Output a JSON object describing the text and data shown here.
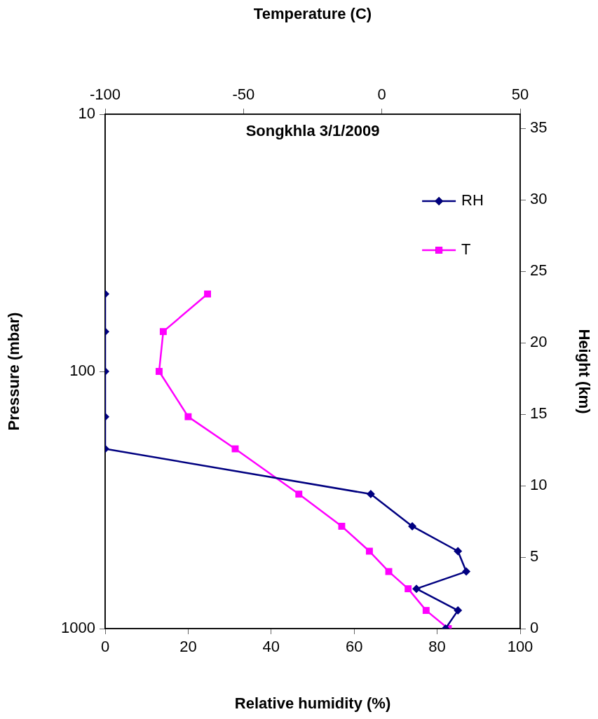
{
  "chart_data": {
    "type": "line",
    "title": "Songkhla 3/1/2009",
    "xlabel": "Relative humidity (%)",
    "x2label": "Temperature (C)",
    "ylabel": "Pressure (mbar)",
    "y2label": "Height (km)",
    "xlim": [
      0,
      100
    ],
    "xticks": [
      0,
      20,
      40,
      60,
      80,
      100
    ],
    "x2lim": [
      -100,
      50
    ],
    "x2ticks": [
      -100,
      -50,
      0,
      50
    ],
    "ylim": [
      1000,
      10
    ],
    "yticks": [
      10,
      100,
      1000
    ],
    "log": "y",
    "y2lim": [
      0,
      36
    ],
    "y2ticks": [
      0,
      5,
      10,
      15,
      20,
      25,
      30,
      35
    ],
    "grid": false,
    "legend": "top right",
    "line_style": "solid",
    "series": [
      {
        "name": "RH",
        "color": "#000080",
        "marker": "diamond",
        "x": [
          0,
          0,
          0,
          0,
          0,
          64,
          74,
          85,
          87,
          75,
          85,
          82
        ],
        "values": [
          50,
          70,
          100,
          150,
          200,
          300,
          400,
          500,
          600,
          700,
          850,
          1000
        ]
      },
      {
        "name": "T",
        "color": "#ff00ff",
        "marker": "square",
        "axis": "x2",
        "x": [
          -63,
          -79,
          -80.5,
          -70,
          -53,
          -30,
          -14.5,
          -4.5,
          2.5,
          9.5,
          16,
          24
        ],
        "values": [
          50,
          70,
          100,
          150,
          200,
          300,
          400,
          500,
          600,
          700,
          850,
          1000
        ]
      }
    ]
  }
}
